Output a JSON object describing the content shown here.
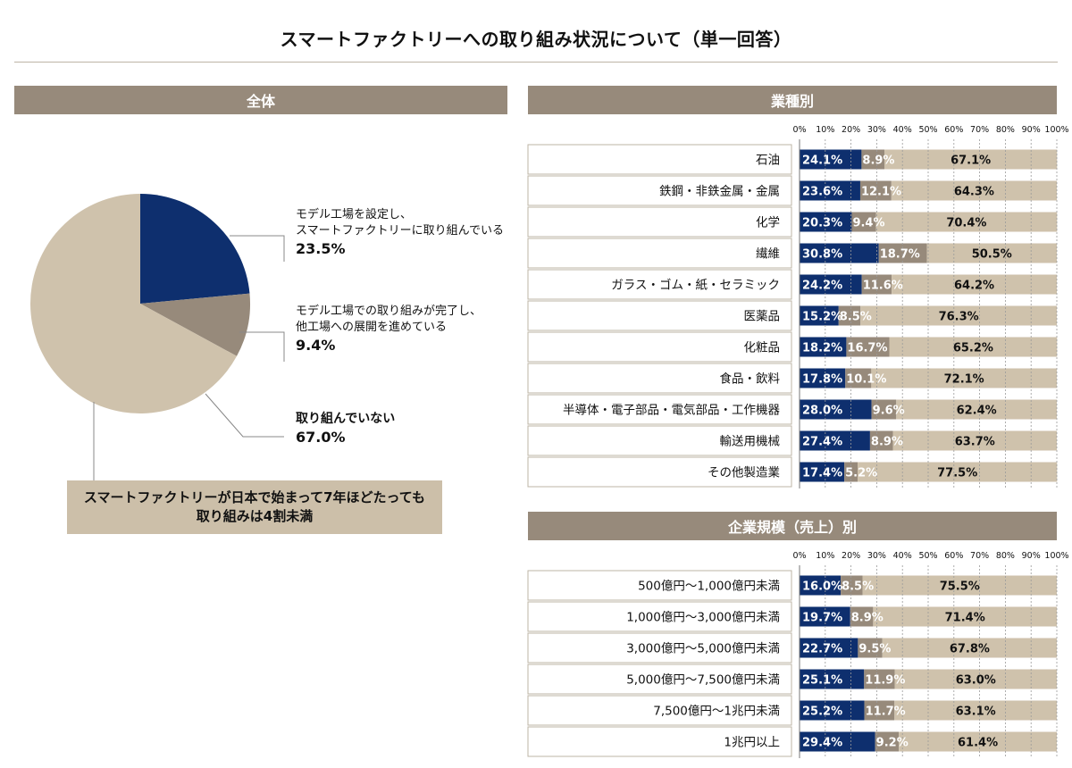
{
  "title": "スマートファクトリーへの取り組み状況について（単一回答）",
  "panels": {
    "overall": "全体",
    "industry": "業種別",
    "size": "企業規模（売上）別"
  },
  "pie_labels": {
    "s1_line1": "モデル工場を設定し、",
    "s1_line2": "スマートファクトリーに取り組んでいる",
    "s1_pct": "23.5%",
    "s2_line1": "モデル工場での取り組みが完了し、",
    "s2_line2": "他工場への展開を進めている",
    "s2_pct": "9.4%",
    "s3_line1": "取り組んでいない",
    "s3_pct": "67.0%"
  },
  "callout": {
    "line1": "スマートファクトリーが日本で始まって7年ほどたっても",
    "line2": "取り組みは4割未満"
  },
  "colors": {
    "series1": "#0e2f6e",
    "series2": "#978a7b",
    "series3": "#cfc2ac",
    "header": "#978a7b"
  },
  "chart_data": [
    {
      "type": "pie",
      "title": "全体",
      "labels": [
        "モデル工場を設定し、スマートファクトリーに取り組んでいる",
        "モデル工場での取り組みが完了し、他工場への展開を進めている",
        "取り組んでいない"
      ],
      "values": [
        23.5,
        9.4,
        67.0
      ]
    },
    {
      "type": "bar",
      "title": "業種別",
      "stacked": true,
      "orientation": "horizontal",
      "xlim": [
        0,
        100
      ],
      "ticks": [
        "0%",
        "10%",
        "20%",
        "30%",
        "40%",
        "50%",
        "60%",
        "70%",
        "80%",
        "90%",
        "100%"
      ],
      "categories": [
        "石油",
        "鉄鋼・非鉄金属・金属",
        "化学",
        "繊維",
        "ガラス・ゴム・紙・セラミック",
        "医薬品",
        "化粧品",
        "食品・飲料",
        "半導体・電子部品・電気部品・工作機器",
        "輸送用機械",
        "その他製造業"
      ],
      "series": [
        {
          "values": [
            24.1,
            23.6,
            20.3,
            30.8,
            24.2,
            15.2,
            18.2,
            17.8,
            28.0,
            27.4,
            17.4
          ]
        },
        {
          "values": [
            8.9,
            12.1,
            9.4,
            18.7,
            11.6,
            8.5,
            16.7,
            10.1,
            9.6,
            8.9,
            5.2
          ]
        },
        {
          "values": [
            67.1,
            64.3,
            70.4,
            50.5,
            64.2,
            76.3,
            65.2,
            72.1,
            62.4,
            63.7,
            77.5
          ]
        }
      ]
    },
    {
      "type": "bar",
      "title": "企業規模（売上）別",
      "stacked": true,
      "orientation": "horizontal",
      "xlim": [
        0,
        100
      ],
      "ticks": [
        "0%",
        "10%",
        "20%",
        "30%",
        "40%",
        "50%",
        "60%",
        "70%",
        "80%",
        "90%",
        "100%"
      ],
      "categories": [
        "500億円～1,000億円未満",
        "1,000億円～3,000億円未満",
        "3,000億円～5,000億円未満",
        "5,000億円～7,500億円未満",
        "7,500億円～1兆円未満",
        "1兆円以上"
      ],
      "series": [
        {
          "values": [
            16.0,
            19.7,
            22.7,
            25.1,
            25.2,
            29.4
          ]
        },
        {
          "values": [
            8.5,
            8.9,
            9.5,
            11.9,
            11.7,
            9.2
          ]
        },
        {
          "values": [
            75.5,
            71.4,
            67.8,
            63.0,
            63.1,
            61.4
          ]
        }
      ]
    }
  ]
}
